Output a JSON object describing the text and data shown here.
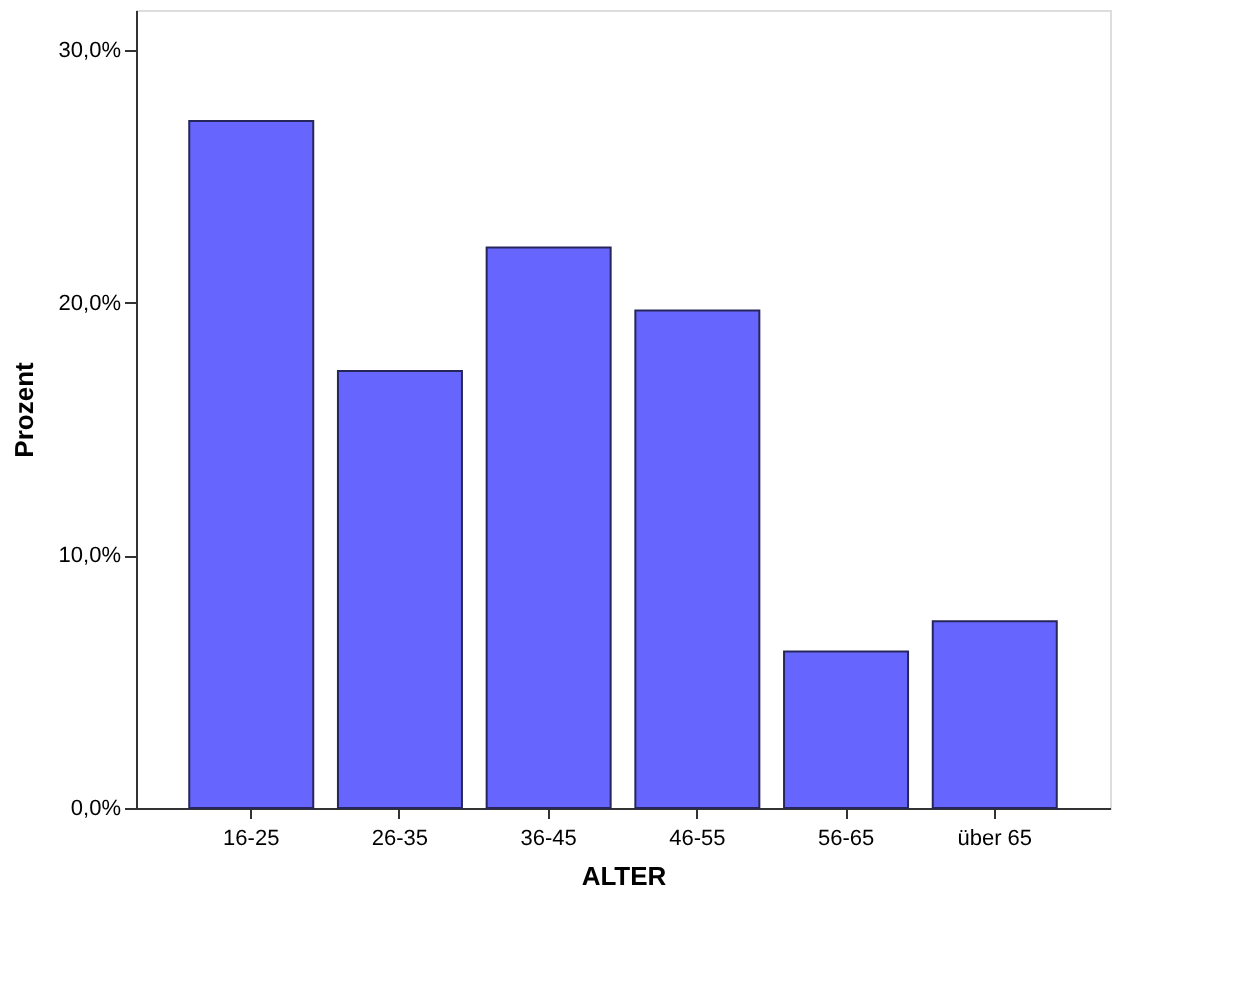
{
  "chart_data": {
    "type": "bar",
    "xlabel": "ALTER",
    "ylabel": "Prozent",
    "categories": [
      "16-25",
      "26-35",
      "36-45",
      "46-55",
      "56-65",
      "über 65"
    ],
    "values": [
      27.2,
      17.3,
      22.2,
      19.7,
      6.2,
      7.4
    ],
    "color": "#6666ff",
    "ylim": [
      0,
      31.6
    ],
    "yticks": [
      {
        "value": 0,
        "label": "0,0%"
      },
      {
        "value": 10,
        "label": "10,0%"
      },
      {
        "value": 20,
        "label": "20,0%"
      },
      {
        "value": 30,
        "label": "30,0%"
      }
    ],
    "grid": false
  }
}
